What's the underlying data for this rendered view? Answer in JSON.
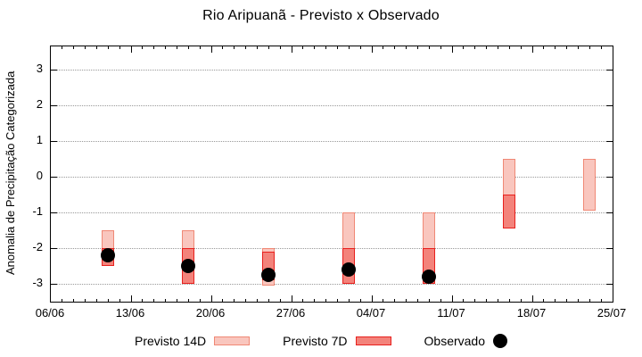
{
  "title": "Rio Aripuanã - Previsto x Observado",
  "chart_data": {
    "type": "bar",
    "subtype": "range-bars-with-observed-points",
    "title": "Rio Aripuanã - Previsto x Observado",
    "ylabel": "Anomalia de Precipitação Categorizada",
    "xlabel": "",
    "x_tick_labels": [
      "06/06",
      "13/06",
      "20/06",
      "27/06",
      "04/07",
      "11/07",
      "18/07",
      "25/07"
    ],
    "x_tick_days": [
      0,
      7,
      14,
      21,
      28,
      35,
      42,
      49
    ],
    "x_minor_tick_interval_days": 1,
    "x_range_days": [
      0,
      49
    ],
    "y_ticks": [
      3,
      2,
      1,
      0,
      -1,
      -2,
      -3
    ],
    "y_range": [
      -3.6,
      3.65
    ],
    "grid": "horizontal-dotted",
    "legend_position": "bottom",
    "series": [
      {
        "name": "Previsto 14D",
        "key": "p14",
        "style": "light-range-bar"
      },
      {
        "name": "Previsto 7D",
        "key": "p7",
        "style": "dark-range-bar"
      },
      {
        "name": "Observado",
        "key": "obs",
        "style": "black-point"
      }
    ],
    "bars": [
      {
        "date": "11/06",
        "day": 5,
        "p14": [
          -1.5,
          -2.5
        ],
        "p7": [
          -2.0,
          -2.5
        ],
        "obs": -2.2
      },
      {
        "date": "18/06",
        "day": 12,
        "p14": [
          -1.5,
          -3.0
        ],
        "p7": [
          -2.0,
          -3.0
        ],
        "obs": -2.5
      },
      {
        "date": "25/06",
        "day": 19,
        "p14": [
          -2.0,
          -3.05
        ],
        "p7": [
          -2.1,
          -2.9
        ],
        "obs": -2.75
      },
      {
        "date": "02/07",
        "day": 26,
        "p14": [
          -1.0,
          -3.0
        ],
        "p7": [
          -2.0,
          -3.0
        ],
        "obs": -2.6
      },
      {
        "date": "09/07",
        "day": 33,
        "p14": [
          -1.0,
          -3.0
        ],
        "p7": [
          -2.0,
          -3.0
        ],
        "obs": -2.8
      },
      {
        "date": "16/07",
        "day": 40,
        "p14": [
          0.5,
          -1.45
        ],
        "p7": [
          -0.5,
          -1.45
        ],
        "obs": null
      },
      {
        "date": "23/07",
        "day": 47,
        "p14": [
          0.5,
          -0.95
        ],
        "p7": null,
        "obs": null
      }
    ],
    "colors": {
      "p14_fill": "#f9c6be",
      "p14_border": "#f08875",
      "p7_fill": "#f3837b",
      "p7_border": "#e8201d",
      "obs": "#000000",
      "grid": "#999999",
      "axis": "#000000"
    }
  },
  "legend": {
    "items": [
      {
        "label": "Previsto 14D"
      },
      {
        "label": "Previsto 7D"
      },
      {
        "label": "Observado"
      }
    ]
  }
}
